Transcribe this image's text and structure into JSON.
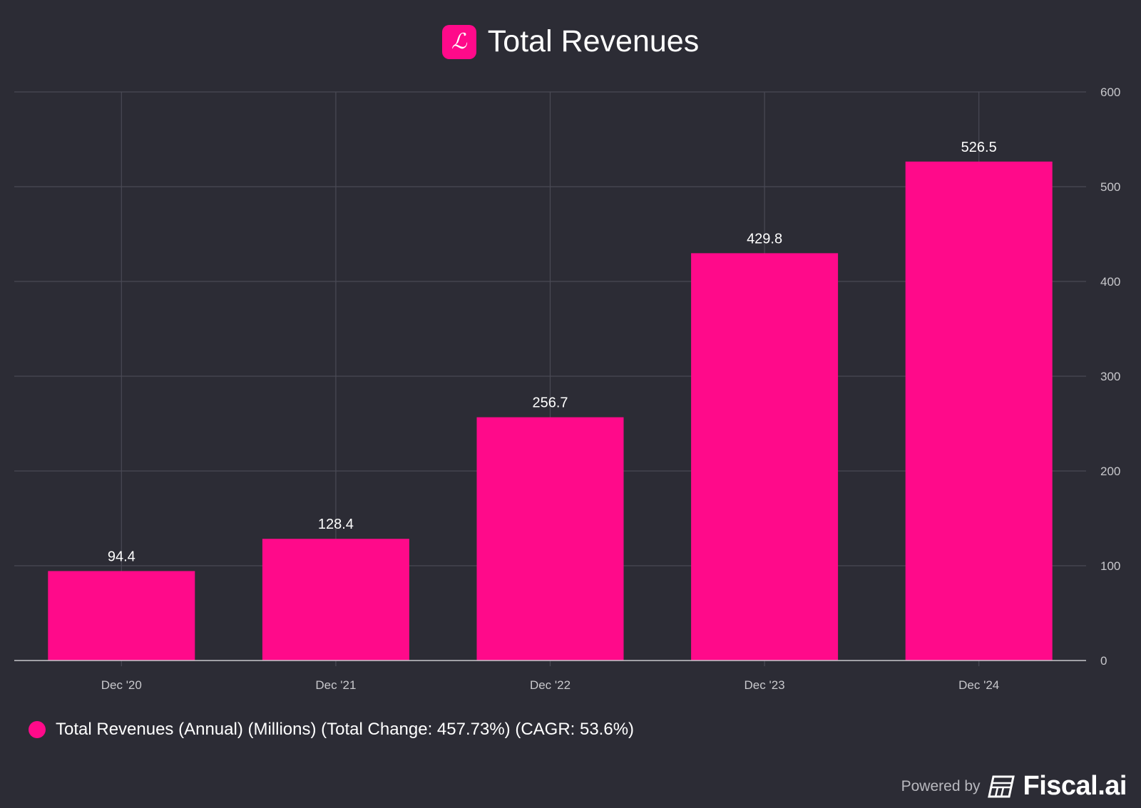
{
  "chart_data": {
    "type": "bar",
    "title": "Total Revenues",
    "categories": [
      "Dec '20",
      "Dec '21",
      "Dec '22",
      "Dec '23",
      "Dec '24"
    ],
    "values": [
      94.4,
      128.4,
      256.7,
      429.8,
      526.5
    ],
    "value_labels": [
      "94.4",
      "128.4",
      "256.7",
      "429.8",
      "526.5"
    ],
    "ylim": [
      0,
      600
    ],
    "yticks": [
      0,
      100,
      200,
      300,
      400,
      500,
      600
    ],
    "ytick_labels": [
      "0",
      "100",
      "200",
      "300",
      "400",
      "500",
      "600"
    ],
    "y_axis_side": "right",
    "grid": true,
    "legend_placement": "bottom-left",
    "series_name": "Total Revenues (Annual) (Millions) (Total Change: 457.73%) (CAGR: 53.6%)",
    "color": "#ff0a8a"
  },
  "header": {
    "logo_letter": "ℒ",
    "title": "Total Revenues"
  },
  "footer": {
    "powered_by": "Powered by",
    "brand": "Fiscal.ai"
  }
}
